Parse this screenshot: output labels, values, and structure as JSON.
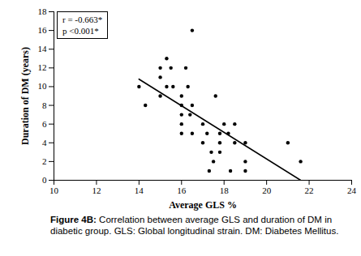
{
  "chart_data": {
    "type": "scatter",
    "figure_label": "Figure 4B:",
    "caption": "Correlation between average GLS and duration of DM in diabetic group. GLS: Global longitudinal strain. DM: Diabetes Mellitus.",
    "x_label": "Average GLS %",
    "y_label": "Duration of DM (years)",
    "annotations": [
      "r = -0.663*",
      "p <0.001*"
    ],
    "x": [
      14.0,
      14.3,
      15.0,
      15.0,
      15.0,
      15.3,
      15.3,
      15.5,
      15.6,
      16.0,
      16.0,
      16.0,
      16.0,
      16.0,
      16.2,
      16.3,
      16.4,
      16.5,
      16.5,
      16.5,
      17.0,
      17.0,
      17.2,
      17.3,
      17.4,
      17.5,
      17.6,
      17.8,
      17.8,
      17.8,
      18.0,
      18.2,
      18.5,
      18.5,
      18.3,
      19.0,
      19.0,
      19.0,
      21.0,
      21.6
    ],
    "y": [
      10,
      8,
      9,
      11,
      12,
      13,
      10,
      12,
      10,
      9,
      8,
      7,
      6,
      5,
      12,
      10,
      7,
      8,
      16,
      5,
      4,
      6,
      5,
      1,
      3,
      2,
      9,
      4,
      3,
      5,
      6,
      5,
      6,
      4,
      1,
      4,
      2,
      1,
      4,
      2
    ],
    "color": "#000000",
    "marker": "circle",
    "fit_line": {
      "x": [
        14.0,
        21.6
      ],
      "y": [
        10.8,
        0
      ],
      "color": "#000000",
      "line_style": "solid"
    },
    "xlim": [
      10,
      24
    ],
    "xticks": [
      10,
      12,
      14,
      16,
      18,
      20,
      22,
      24
    ],
    "ylim": [
      0,
      18
    ],
    "yticks": [
      0,
      2,
      4,
      6,
      8,
      10,
      12,
      14,
      16,
      18
    ],
    "grid": false
  }
}
